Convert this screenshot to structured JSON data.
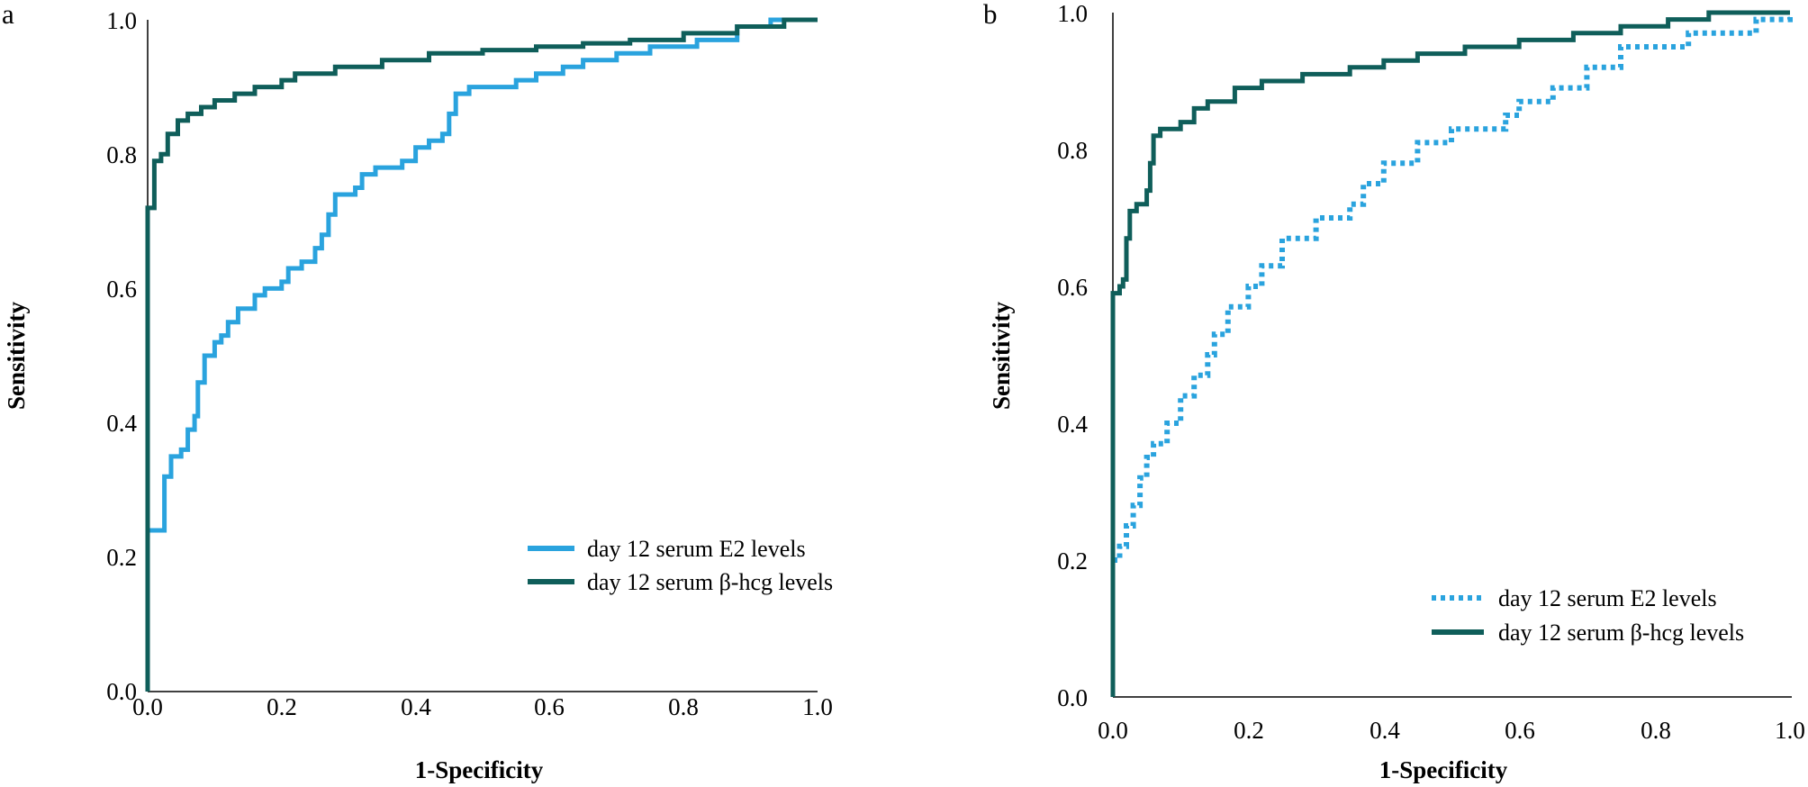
{
  "chart_data": [
    {
      "type": "line",
      "panel": "a",
      "title": "",
      "xlabel": "1-Specificity",
      "ylabel": "Sensitivity",
      "xlim": [
        0,
        1
      ],
      "ylim": [
        0,
        1
      ],
      "xticks": [
        "0.0",
        "0.2",
        "0.4",
        "0.6",
        "0.8",
        "1.0"
      ],
      "yticks": [
        "0.0",
        "0.2",
        "0.4",
        "0.6",
        "0.8",
        "1.0"
      ],
      "grid": false,
      "legend_position": "bottom-right",
      "series": [
        {
          "name": "day 12 serum E2 levels",
          "color": "#2aa3de",
          "style": "solid",
          "step": true,
          "points": [
            [
              0,
              0
            ],
            [
              0,
              0.24
            ],
            [
              0.025,
              0.24
            ],
            [
              0.025,
              0.32
            ],
            [
              0.035,
              0.32
            ],
            [
              0.035,
              0.35
            ],
            [
              0.05,
              0.36
            ],
            [
              0.06,
              0.39
            ],
            [
              0.07,
              0.41
            ],
            [
              0.075,
              0.46
            ],
            [
              0.085,
              0.5
            ],
            [
              0.1,
              0.52
            ],
            [
              0.11,
              0.53
            ],
            [
              0.12,
              0.55
            ],
            [
              0.135,
              0.57
            ],
            [
              0.16,
              0.59
            ],
            [
              0.175,
              0.6
            ],
            [
              0.2,
              0.61
            ],
            [
              0.21,
              0.63
            ],
            [
              0.23,
              0.64
            ],
            [
              0.25,
              0.66
            ],
            [
              0.26,
              0.68
            ],
            [
              0.27,
              0.71
            ],
            [
              0.28,
              0.74
            ],
            [
              0.31,
              0.75
            ],
            [
              0.32,
              0.77
            ],
            [
              0.34,
              0.78
            ],
            [
              0.38,
              0.79
            ],
            [
              0.4,
              0.81
            ],
            [
              0.42,
              0.82
            ],
            [
              0.44,
              0.83
            ],
            [
              0.45,
              0.86
            ],
            [
              0.46,
              0.89
            ],
            [
              0.48,
              0.9
            ],
            [
              0.55,
              0.91
            ],
            [
              0.58,
              0.92
            ],
            [
              0.62,
              0.93
            ],
            [
              0.65,
              0.94
            ],
            [
              0.7,
              0.95
            ],
            [
              0.75,
              0.96
            ],
            [
              0.82,
              0.97
            ],
            [
              0.88,
              0.99
            ],
            [
              0.93,
              1.0
            ],
            [
              1.0,
              1.0
            ]
          ]
        },
        {
          "name": "day 12 serum β-hcg levels",
          "color": "#0f5e5a",
          "style": "solid",
          "step": true,
          "points": [
            [
              0,
              0
            ],
            [
              0,
              0.72
            ],
            [
              0.01,
              0.72
            ],
            [
              0.01,
              0.79
            ],
            [
              0.02,
              0.8
            ],
            [
              0.03,
              0.83
            ],
            [
              0.045,
              0.85
            ],
            [
              0.06,
              0.86
            ],
            [
              0.08,
              0.87
            ],
            [
              0.1,
              0.88
            ],
            [
              0.13,
              0.89
            ],
            [
              0.16,
              0.9
            ],
            [
              0.2,
              0.91
            ],
            [
              0.22,
              0.92
            ],
            [
              0.28,
              0.93
            ],
            [
              0.35,
              0.94
            ],
            [
              0.42,
              0.95
            ],
            [
              0.5,
              0.955
            ],
            [
              0.58,
              0.96
            ],
            [
              0.65,
              0.965
            ],
            [
              0.72,
              0.97
            ],
            [
              0.8,
              0.98
            ],
            [
              0.88,
              0.99
            ],
            [
              0.95,
              1.0
            ],
            [
              1.0,
              1.0
            ]
          ]
        }
      ]
    },
    {
      "type": "line",
      "panel": "b",
      "title": "",
      "xlabel": "1-Specificity",
      "ylabel": "Sensitivity",
      "xlim": [
        0,
        1
      ],
      "ylim": [
        0,
        1
      ],
      "xticks": [
        "0.0",
        "0.2",
        "0.4",
        "0.6",
        "0.8",
        "1.0"
      ],
      "yticks": [
        "0.0",
        "0.2",
        "0.4",
        "0.6",
        "0.8",
        "1.0"
      ],
      "grid": false,
      "legend_position": "bottom-right",
      "series": [
        {
          "name": "day 12 serum E2 levels",
          "color": "#2aa3de",
          "style": "dotted",
          "step": true,
          "points": [
            [
              0,
              0.2
            ],
            [
              0.01,
              0.22
            ],
            [
              0.02,
              0.25
            ],
            [
              0.03,
              0.28
            ],
            [
              0.04,
              0.32
            ],
            [
              0.05,
              0.35
            ],
            [
              0.06,
              0.37
            ],
            [
              0.08,
              0.4
            ],
            [
              0.1,
              0.44
            ],
            [
              0.12,
              0.47
            ],
            [
              0.14,
              0.5
            ],
            [
              0.15,
              0.53
            ],
            [
              0.17,
              0.57
            ],
            [
              0.2,
              0.6
            ],
            [
              0.22,
              0.63
            ],
            [
              0.25,
              0.67
            ],
            [
              0.3,
              0.7
            ],
            [
              0.35,
              0.72
            ],
            [
              0.37,
              0.75
            ],
            [
              0.4,
              0.78
            ],
            [
              0.45,
              0.81
            ],
            [
              0.5,
              0.83
            ],
            [
              0.58,
              0.85
            ],
            [
              0.6,
              0.87
            ],
            [
              0.65,
              0.89
            ],
            [
              0.7,
              0.92
            ],
            [
              0.75,
              0.95
            ],
            [
              0.85,
              0.97
            ],
            [
              0.95,
              0.99
            ],
            [
              1.0,
              1.0
            ]
          ]
        },
        {
          "name": "day 12 serum β-hcg levels",
          "color": "#0f5e5a",
          "style": "solid",
          "step": true,
          "points": [
            [
              0,
              0
            ],
            [
              0,
              0.59
            ],
            [
              0.01,
              0.6
            ],
            [
              0.015,
              0.61
            ],
            [
              0.02,
              0.67
            ],
            [
              0.025,
              0.71
            ],
            [
              0.035,
              0.72
            ],
            [
              0.05,
              0.74
            ],
            [
              0.055,
              0.78
            ],
            [
              0.06,
              0.82
            ],
            [
              0.07,
              0.83
            ],
            [
              0.1,
              0.84
            ],
            [
              0.12,
              0.86
            ],
            [
              0.14,
              0.87
            ],
            [
              0.18,
              0.89
            ],
            [
              0.22,
              0.9
            ],
            [
              0.28,
              0.91
            ],
            [
              0.35,
              0.92
            ],
            [
              0.4,
              0.93
            ],
            [
              0.45,
              0.94
            ],
            [
              0.52,
              0.95
            ],
            [
              0.6,
              0.96
            ],
            [
              0.68,
              0.97
            ],
            [
              0.75,
              0.98
            ],
            [
              0.82,
              0.99
            ],
            [
              0.88,
              1.0
            ],
            [
              1.0,
              1.0
            ]
          ]
        }
      ]
    }
  ]
}
